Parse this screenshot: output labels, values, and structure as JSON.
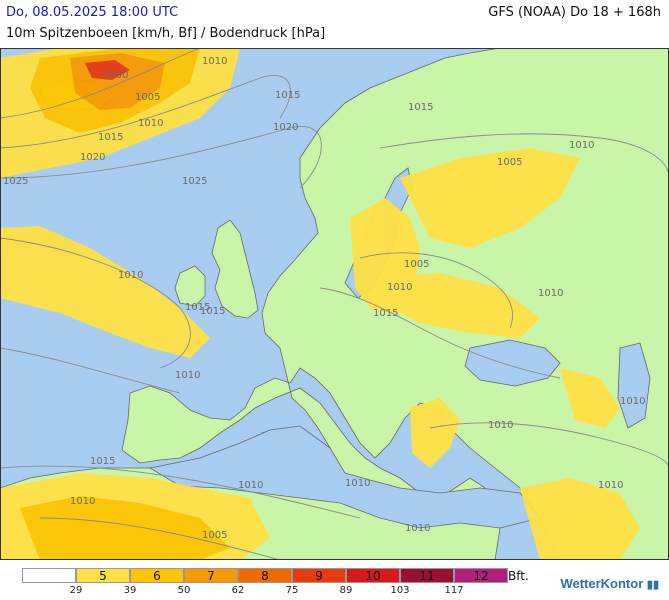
{
  "header": {
    "valid_time": "Do, 08.05.2025 18:00 UTC",
    "model_run": "GFS (NOAA) Do 18 + 168h",
    "parameter": "10m Spitzenboeen [km/h, Bf] / Bodendruck [hPa]"
  },
  "colors": {
    "sea": "#a9cdf0",
    "land": "#c8f5a8",
    "bf5": "#ffe045",
    "bf6": "#ffc400",
    "bf7": "#f79a00",
    "bf8": "#ef6a00",
    "bf9": "#e63a10"
  },
  "isobars": [
    {
      "label": "1000"
    },
    {
      "label": "1005"
    },
    {
      "label": "1010"
    },
    {
      "label": "1015"
    },
    {
      "label": "1020"
    },
    {
      "label": "1025"
    },
    {
      "label": "1010"
    },
    {
      "label": "1015"
    },
    {
      "label": "1020"
    },
    {
      "label": "1025"
    },
    {
      "label": "1015"
    },
    {
      "label": "1005"
    },
    {
      "label": "1010"
    },
    {
      "label": "1005"
    },
    {
      "label": "1010"
    },
    {
      "label": "1015"
    },
    {
      "label": "1010"
    },
    {
      "label": "1010"
    },
    {
      "label": "1015"
    },
    {
      "label": "1010"
    },
    {
      "label": "1010"
    },
    {
      "label": "1010"
    },
    {
      "label": "1010"
    },
    {
      "label": "1010"
    },
    {
      "label": "1005"
    },
    {
      "label": "1015"
    },
    {
      "label": "1010"
    },
    {
      "label": "1015"
    },
    {
      "label": "1010"
    },
    {
      "label": "1010"
    }
  ],
  "legend": {
    "cells": [
      {
        "label": "",
        "color": "#ffffff"
      },
      {
        "label": "5",
        "color": "#ffe045"
      },
      {
        "label": "6",
        "color": "#ffc400"
      },
      {
        "label": "7",
        "color": "#f79a00"
      },
      {
        "label": "8",
        "color": "#ef6a00"
      },
      {
        "label": "9",
        "color": "#e63a10"
      },
      {
        "label": "10",
        "color": "#d41a1a"
      },
      {
        "label": "11",
        "color": "#9a1035"
      },
      {
        "label": "12",
        "color": "#b0207a"
      }
    ],
    "ticks": [
      "29",
      "39",
      "50",
      "62",
      "75",
      "89",
      "103",
      "117"
    ],
    "unit": "Bft."
  },
  "brand": {
    "name": "WetterKontor",
    "mark_icon": "rising-bars-icon"
  }
}
